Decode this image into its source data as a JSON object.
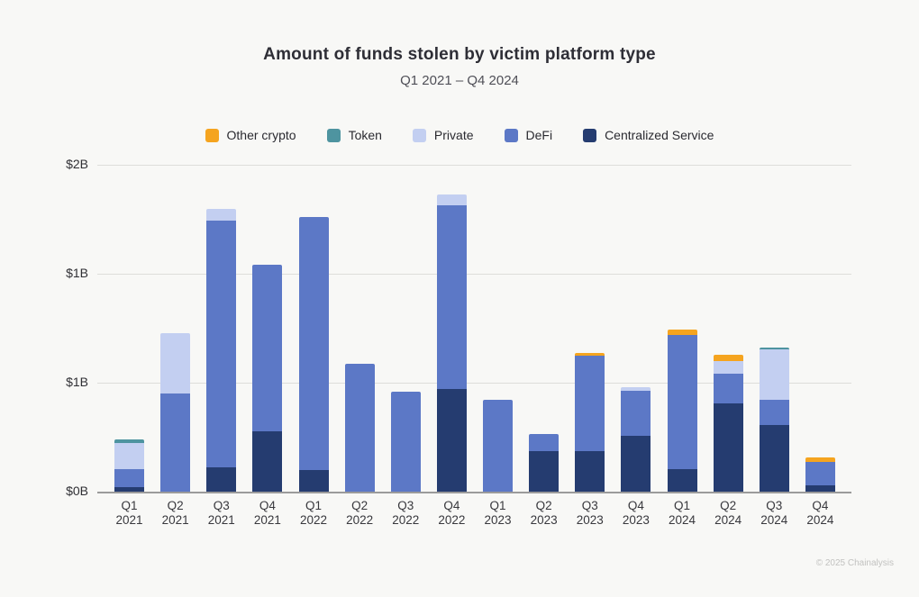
{
  "header": {
    "title": "Amount of funds stolen by victim platform type",
    "subtitle": "Q1 2021 – Q4 2024"
  },
  "footer": {
    "copyright": "© 2025 Chainalysis"
  },
  "chart_data": {
    "type": "bar",
    "stacked": true,
    "title": "Amount of funds stolen by victim platform type",
    "subtitle": "Q1 2021 – Q4 2024",
    "unit": "USD billions",
    "grid": true,
    "legend_position": "top-center",
    "categories": [
      "Q1 2021",
      "Q2 2021",
      "Q3 2021",
      "Q4 2021",
      "Q1 2022",
      "Q2 2022",
      "Q3 2022",
      "Q4 2022",
      "Q1 2023",
      "Q2 2023",
      "Q3 2023",
      "Q4 2023",
      "Q1 2024",
      "Q2 2024",
      "Q3 2024",
      "Q4 2024"
    ],
    "series": [
      {
        "name": "Centralized Service",
        "color": "#253c70",
        "values": [
          0.03,
          0,
          0.15,
          0.37,
          0.13,
          0,
          0,
          0.63,
          0,
          0.25,
          0.25,
          0.34,
          0.14,
          0.54,
          0.41,
          0.04
        ]
      },
      {
        "name": "DeFi",
        "color": "#5c78c6",
        "values": [
          0.11,
          0.6,
          1.51,
          1.02,
          1.55,
          0.78,
          0.61,
          1.12,
          0.56,
          0.1,
          0.58,
          0.28,
          0.82,
          0.18,
          0.15,
          0.14
        ]
      },
      {
        "name": "Private",
        "color": "#c3cff1",
        "values": [
          0.16,
          0.37,
          0.07,
          0,
          0,
          0,
          0,
          0.07,
          0,
          0,
          0,
          0.02,
          0,
          0.08,
          0.31,
          0
        ]
      },
      {
        "name": "Token",
        "color": "#4e94a0",
        "values": [
          0.02,
          0,
          0,
          0,
          0,
          0,
          0,
          0,
          0,
          0,
          0,
          0,
          0,
          0,
          0.01,
          0
        ]
      },
      {
        "name": "Other crypto",
        "color": "#f5a41f",
        "values": [
          0,
          0,
          0,
          0,
          0,
          0,
          0,
          0,
          0,
          0,
          0.02,
          0,
          0.03,
          0.04,
          0,
          0.03
        ]
      }
    ],
    "legend": [
      {
        "label": "Other crypto",
        "color": "#f5a41f"
      },
      {
        "label": "Token",
        "color": "#4e94a0"
      },
      {
        "label": "Private",
        "color": "#c3cff1"
      },
      {
        "label": "DeFi",
        "color": "#5c78c6"
      },
      {
        "label": "Centralized Service",
        "color": "#253c70"
      }
    ],
    "y_axis": {
      "max": 2.0,
      "min": 0,
      "ticks": [
        {
          "label": "$2B",
          "value": 2.0
        },
        {
          "label": "$1B",
          "value": 1.3333
        },
        {
          "label": "$1B",
          "value": 0.6667
        },
        {
          "label": "$0B",
          "value": 0
        }
      ]
    }
  }
}
